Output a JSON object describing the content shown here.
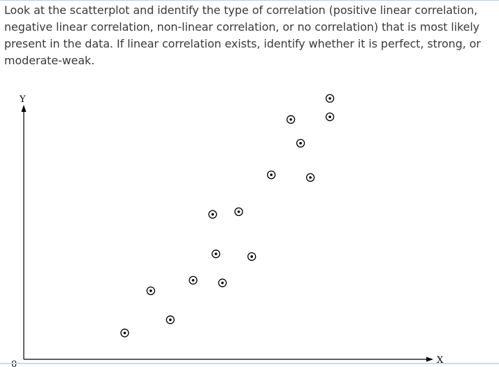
{
  "question": {
    "text": "Look at the scatterplot and identify the type of correlation (positive linear correlation, negative linear correlation, non-linear correlation, or no correlation) that is most likely present in the data. If linear correlation exists, identify whether it is perfect, strong, or moderate-weak."
  },
  "chart_data": {
    "type": "scatter",
    "title": "",
    "xlabel": "X",
    "ylabel": "Y",
    "origin_label": "0",
    "xlim": [
      0,
      100
    ],
    "ylim": [
      0,
      100
    ],
    "grid": false,
    "marker": "circled-dot",
    "series": [
      {
        "points": [
          {
            "x": 31,
            "y": 10
          },
          {
            "x": 45,
            "y": 15
          },
          {
            "x": 39,
            "y": 26
          },
          {
            "x": 52,
            "y": 30
          },
          {
            "x": 61,
            "y": 29
          },
          {
            "x": 59,
            "y": 40
          },
          {
            "x": 70,
            "y": 39
          },
          {
            "x": 58,
            "y": 55
          },
          {
            "x": 66,
            "y": 56
          },
          {
            "x": 76,
            "y": 70
          },
          {
            "x": 88,
            "y": 69
          },
          {
            "x": 85,
            "y": 82
          },
          {
            "x": 82,
            "y": 91
          },
          {
            "x": 94,
            "y": 92
          },
          {
            "x": 94,
            "y": 99
          }
        ]
      }
    ]
  }
}
